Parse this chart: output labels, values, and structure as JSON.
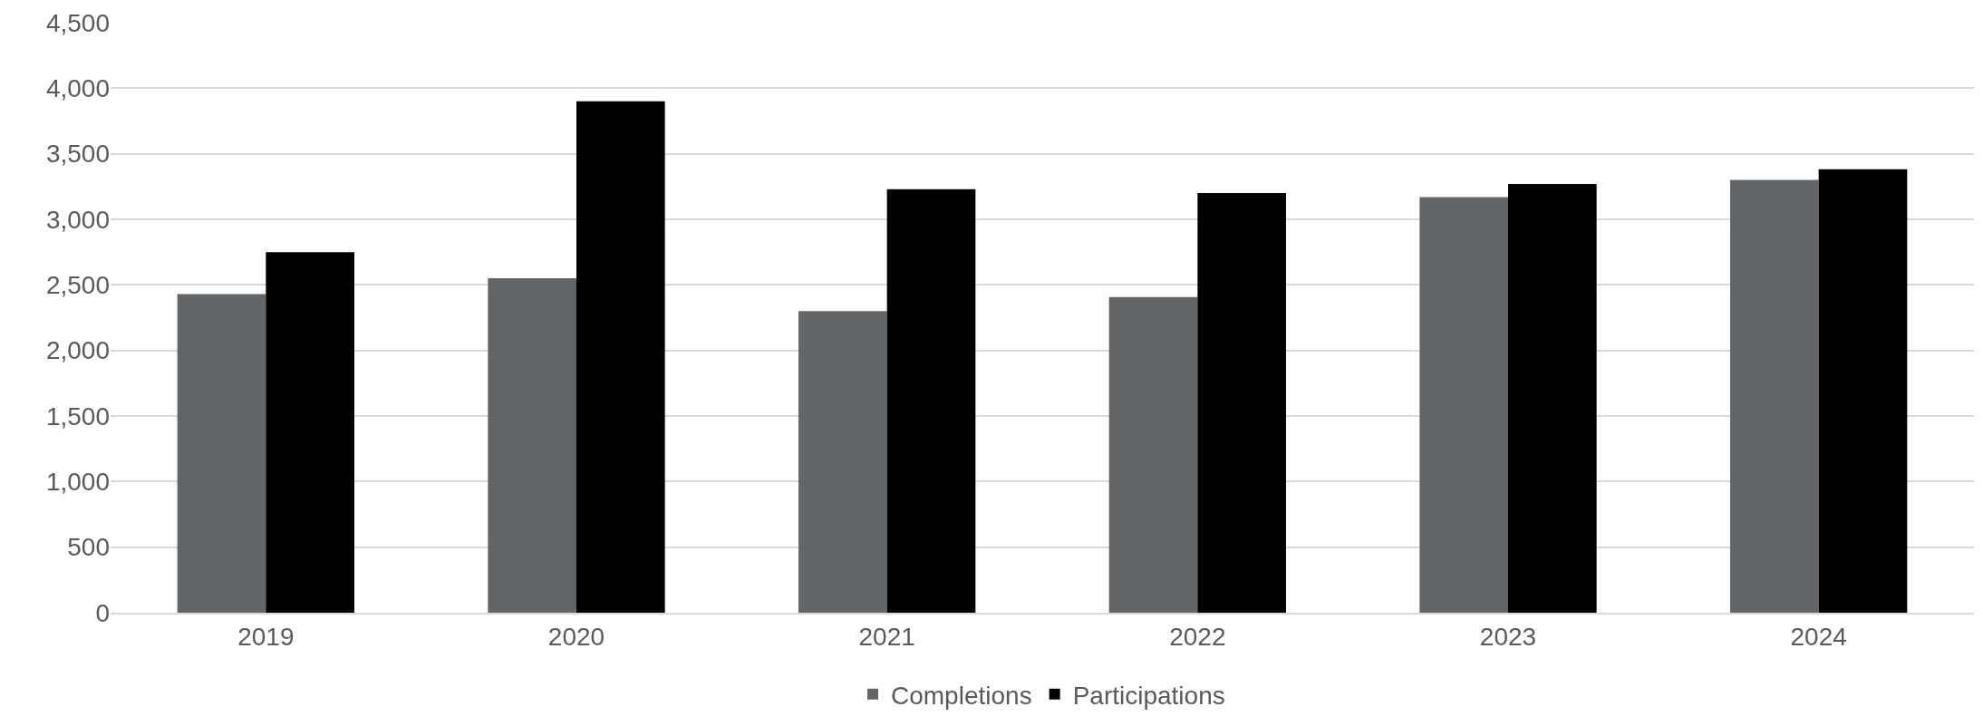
{
  "chart_data": {
    "type": "bar",
    "categories": [
      "2019",
      "2020",
      "2021",
      "2022",
      "2023",
      "2024"
    ],
    "series": [
      {
        "name": "Completions",
        "color": "#636669",
        "values": [
          2430,
          2550,
          2300,
          2408,
          3170,
          3300
        ]
      },
      {
        "name": "Participations",
        "color": "#000000",
        "values": [
          2750,
          3900,
          3230,
          3200,
          3270,
          3382
        ]
      }
    ],
    "ylim": [
      0,
      4500
    ],
    "yticks": [
      {
        "value": 0,
        "label": "0"
      },
      {
        "value": 500,
        "label": "500"
      },
      {
        "value": 1000,
        "label": "1,000"
      },
      {
        "value": 1500,
        "label": "1,500"
      },
      {
        "value": 2000,
        "label": "2,000"
      },
      {
        "value": 2500,
        "label": "2,500"
      },
      {
        "value": 3000,
        "label": "3,000"
      },
      {
        "value": 3500,
        "label": "3,500"
      },
      {
        "value": 4000,
        "label": "4,000"
      },
      {
        "value": 4500,
        "label": "4,500"
      }
    ],
    "grid": "y",
    "legend": "bottom"
  }
}
